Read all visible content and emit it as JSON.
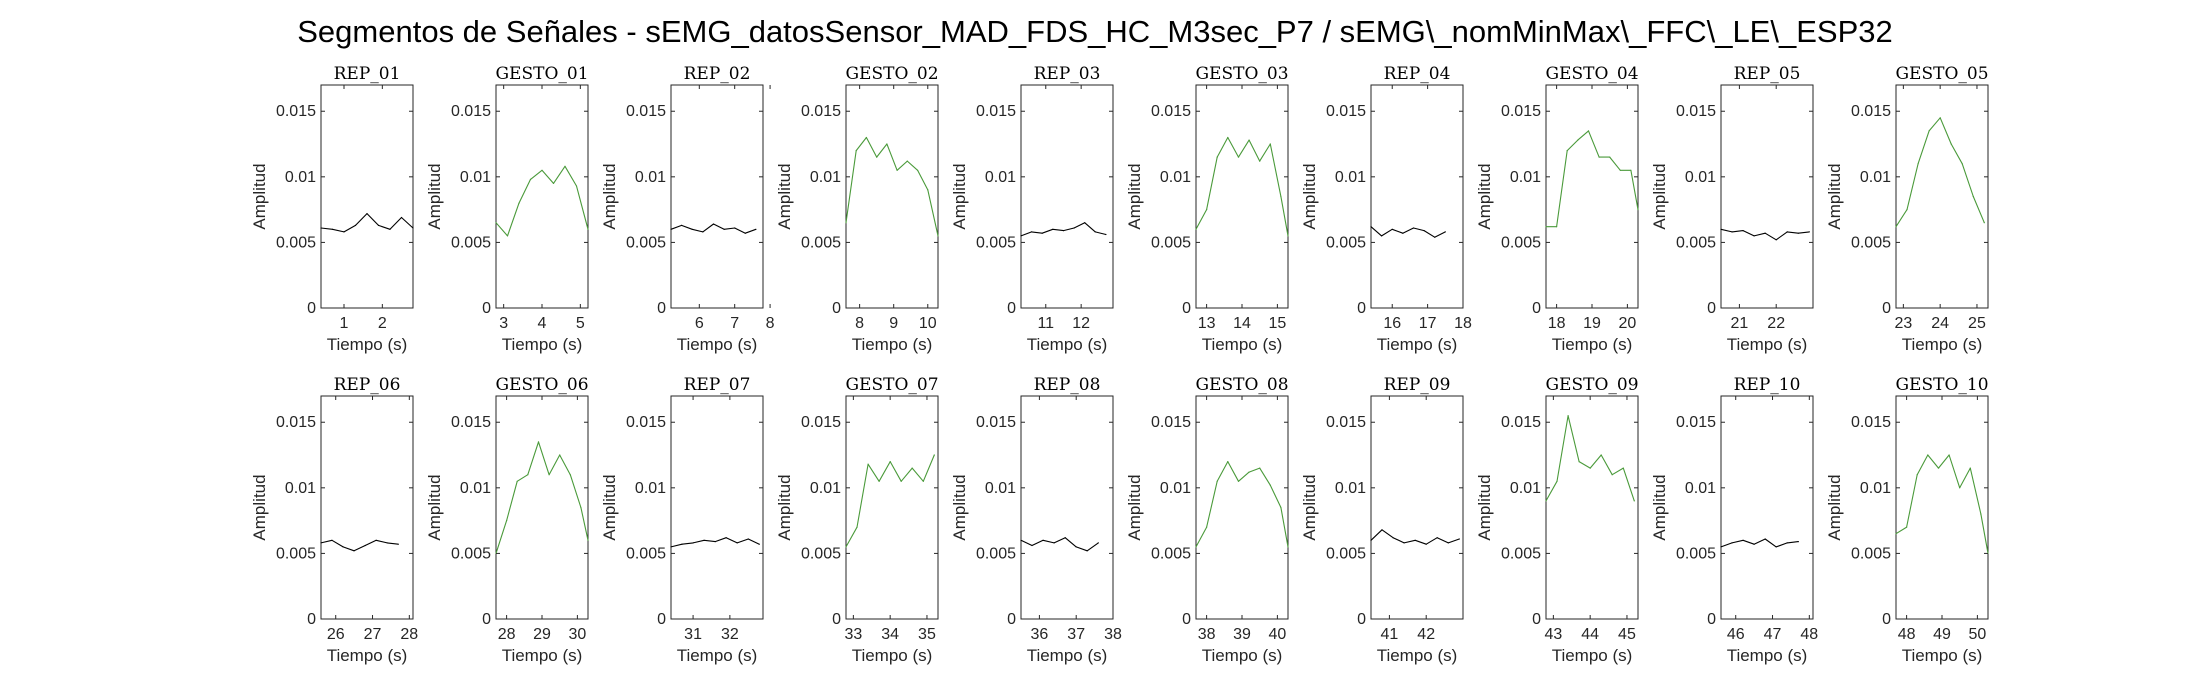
{
  "figure": {
    "title": "Segmentos de Señales - sEMG_datosSensor_MAD_FDS_HC_M3sec_P7 / sEMG\\_nomMinMax\\_FFC\\_LE\\_ESP32",
    "colors": {
      "rep": "#000000",
      "gesto": "#4a9a3a",
      "axis": "#262626"
    }
  },
  "chart_data": [
    {
      "type": "line",
      "title": "REP_01",
      "xlabel": "Tiempo (s)",
      "ylabel": "Amplitud",
      "xlim": [
        0.4,
        2.8
      ],
      "ylim": [
        0,
        0.017
      ],
      "xticks": [
        1,
        2
      ],
      "yticks": [
        0,
        0.005,
        0.01,
        0.015
      ],
      "ytick_labels": [
        "0",
        "0.005",
        "0.01",
        "0.015"
      ],
      "color": "#000000",
      "x": [
        0.4,
        0.7,
        1.0,
        1.3,
        1.6,
        1.9,
        2.2,
        2.5,
        2.8
      ],
      "y": [
        0.0061,
        0.006,
        0.0058,
        0.0063,
        0.0072,
        0.0063,
        0.006,
        0.0069,
        0.0061
      ]
    },
    {
      "type": "line",
      "title": "GESTO_01",
      "xlabel": "Tiempo (s)",
      "ylabel": "Amplitud",
      "xlim": [
        2.8,
        5.2
      ],
      "ylim": [
        0,
        0.017
      ],
      "xticks": [
        3,
        4,
        5
      ],
      "yticks": [
        0,
        0.005,
        0.01,
        0.015
      ],
      "ytick_labels": [
        "0",
        "0.005",
        "0.01",
        "0.015"
      ],
      "color": "#4a9a3a",
      "x": [
        2.8,
        3.1,
        3.4,
        3.7,
        4.0,
        4.3,
        4.6,
        4.9,
        5.2
      ],
      "y": [
        0.0065,
        0.0055,
        0.008,
        0.0098,
        0.0105,
        0.0095,
        0.0108,
        0.0093,
        0.006
      ]
    },
    {
      "type": "line",
      "title": "REP_02",
      "xlabel": "Tiempo (s)",
      "ylabel": "Amplitud",
      "xlim": [
        5.2,
        7.8
      ],
      "ylim": [
        0,
        0.017
      ],
      "xticks": [
        6,
        7,
        8
      ],
      "yticks": [
        0,
        0.005,
        0.01,
        0.015
      ],
      "ytick_labels": [
        "0",
        "0.005",
        "0.01",
        "0.015"
      ],
      "color": "#000000",
      "x": [
        5.2,
        5.5,
        5.8,
        6.1,
        6.4,
        6.7,
        7.0,
        7.3,
        7.6
      ],
      "y": [
        0.006,
        0.0063,
        0.006,
        0.0058,
        0.0064,
        0.006,
        0.0061,
        0.0057,
        0.006
      ]
    },
    {
      "type": "line",
      "title": "GESTO_02",
      "xlabel": "Tiempo (s)",
      "ylabel": "Amplitud",
      "xlim": [
        7.6,
        10.3
      ],
      "ylim": [
        0,
        0.017
      ],
      "xticks": [
        8,
        9,
        10
      ],
      "yticks": [
        0,
        0.005,
        0.01,
        0.015
      ],
      "ytick_labels": [
        "0",
        "0.005",
        "0.01",
        "0.015"
      ],
      "color": "#4a9a3a",
      "x": [
        7.6,
        7.9,
        8.2,
        8.5,
        8.8,
        9.1,
        9.4,
        9.7,
        10.0,
        10.3
      ],
      "y": [
        0.0065,
        0.012,
        0.013,
        0.0115,
        0.0125,
        0.0105,
        0.0112,
        0.0105,
        0.009,
        0.0055
      ]
    },
    {
      "type": "line",
      "title": "REP_03",
      "xlabel": "Tiempo (s)",
      "ylabel": "Amplitud",
      "xlim": [
        10.3,
        12.9
      ],
      "ylim": [
        0,
        0.017
      ],
      "xticks": [
        11,
        12
      ],
      "yticks": [
        0,
        0.005,
        0.01,
        0.015
      ],
      "ytick_labels": [
        "0",
        "0.005",
        "0.01",
        "0.015"
      ],
      "color": "#000000",
      "x": [
        10.3,
        10.6,
        10.9,
        11.2,
        11.5,
        11.8,
        12.1,
        12.4,
        12.7
      ],
      "y": [
        0.0055,
        0.0058,
        0.0057,
        0.006,
        0.0059,
        0.0061,
        0.0065,
        0.0058,
        0.0056
      ]
    },
    {
      "type": "line",
      "title": "GESTO_03",
      "xlabel": "Tiempo (s)",
      "ylabel": "Amplitud",
      "xlim": [
        12.7,
        15.3
      ],
      "ylim": [
        0,
        0.017
      ],
      "xticks": [
        13,
        14,
        15
      ],
      "yticks": [
        0,
        0.005,
        0.01,
        0.015
      ],
      "ytick_labels": [
        "0",
        "0.005",
        "0.01",
        "0.015"
      ],
      "color": "#4a9a3a",
      "x": [
        12.7,
        13.0,
        13.3,
        13.6,
        13.9,
        14.2,
        14.5,
        14.8,
        15.1,
        15.3
      ],
      "y": [
        0.006,
        0.0075,
        0.0115,
        0.013,
        0.0115,
        0.0128,
        0.0112,
        0.0125,
        0.0085,
        0.0055
      ]
    },
    {
      "type": "line",
      "title": "REP_04",
      "xlabel": "Tiempo (s)",
      "ylabel": "Amplitud",
      "xlim": [
        15.4,
        18.0
      ],
      "ylim": [
        0,
        0.017
      ],
      "xticks": [
        16,
        17,
        18
      ],
      "yticks": [
        0,
        0.005,
        0.01,
        0.015
      ],
      "ytick_labels": [
        "0",
        "0.005",
        "0.01",
        "0.015"
      ],
      "color": "#000000",
      "x": [
        15.4,
        15.7,
        16.0,
        16.3,
        16.6,
        16.9,
        17.2,
        17.5
      ],
      "y": [
        0.0062,
        0.0055,
        0.006,
        0.0057,
        0.0061,
        0.0059,
        0.0054,
        0.0058
      ]
    },
    {
      "type": "line",
      "title": "GESTO_04",
      "xlabel": "Tiempo (s)",
      "ylabel": "Amplitud",
      "xlim": [
        17.7,
        20.3
      ],
      "ylim": [
        0,
        0.017
      ],
      "xticks": [
        18,
        19,
        20
      ],
      "yticks": [
        0,
        0.005,
        0.01,
        0.015
      ],
      "ytick_labels": [
        "0",
        "0.005",
        "0.01",
        "0.015"
      ],
      "color": "#4a9a3a",
      "x": [
        17.7,
        18.0,
        18.3,
        18.6,
        18.9,
        19.2,
        19.5,
        19.8,
        20.1,
        20.3
      ],
      "y": [
        0.0062,
        0.0062,
        0.012,
        0.0128,
        0.0135,
        0.0115,
        0.0115,
        0.0105,
        0.0105,
        0.0075
      ]
    },
    {
      "type": "line",
      "title": "REP_05",
      "xlabel": "Tiempo (s)",
      "ylabel": "Amplitud",
      "xlim": [
        20.5,
        23.0
      ],
      "ylim": [
        0,
        0.017
      ],
      "xticks": [
        21,
        22
      ],
      "yticks": [
        0,
        0.005,
        0.01,
        0.015
      ],
      "ytick_labels": [
        "0",
        "0.005",
        "0.01",
        "0.015"
      ],
      "color": "#000000",
      "x": [
        20.5,
        20.8,
        21.1,
        21.4,
        21.7,
        22.0,
        22.3,
        22.6,
        22.9
      ],
      "y": [
        0.006,
        0.0058,
        0.0059,
        0.0055,
        0.0057,
        0.0052,
        0.0058,
        0.0057,
        0.0058
      ]
    },
    {
      "type": "line",
      "title": "GESTO_05",
      "xlabel": "Tiempo (s)",
      "ylabel": "Amplitud",
      "xlim": [
        22.8,
        25.3
      ],
      "ylim": [
        0,
        0.017
      ],
      "xticks": [
        23,
        24,
        25
      ],
      "yticks": [
        0,
        0.005,
        0.01,
        0.015
      ],
      "ytick_labels": [
        "0",
        "0.005",
        "0.01",
        "0.015"
      ],
      "color": "#4a9a3a",
      "x": [
        22.8,
        23.1,
        23.4,
        23.7,
        24.0,
        24.3,
        24.6,
        24.9,
        25.2
      ],
      "y": [
        0.0062,
        0.0075,
        0.011,
        0.0135,
        0.0145,
        0.0125,
        0.011,
        0.0085,
        0.0065
      ]
    },
    {
      "type": "line",
      "title": "REP_06",
      "xlabel": "Tiempo (s)",
      "ylabel": "Amplitud",
      "xlim": [
        25.6,
        28.1
      ],
      "ylim": [
        0,
        0.017
      ],
      "xticks": [
        26,
        27,
        28
      ],
      "yticks": [
        0,
        0.005,
        0.01,
        0.015
      ],
      "ytick_labels": [
        "0",
        "0.005",
        "0.01",
        "0.015"
      ],
      "color": "#000000",
      "x": [
        25.6,
        25.9,
        26.2,
        26.5,
        26.8,
        27.1,
        27.4,
        27.7
      ],
      "y": [
        0.0058,
        0.006,
        0.0055,
        0.0052,
        0.0056,
        0.006,
        0.0058,
        0.0057
      ]
    },
    {
      "type": "line",
      "title": "GESTO_06",
      "xlabel": "Tiempo (s)",
      "ylabel": "Amplitud",
      "xlim": [
        27.7,
        30.3
      ],
      "ylim": [
        0,
        0.017
      ],
      "xticks": [
        28,
        29,
        30
      ],
      "yticks": [
        0,
        0.005,
        0.01,
        0.015
      ],
      "ytick_labels": [
        "0",
        "0.005",
        "0.01",
        "0.015"
      ],
      "color": "#4a9a3a",
      "x": [
        27.7,
        28.0,
        28.3,
        28.6,
        28.9,
        29.2,
        29.5,
        29.8,
        30.1,
        30.3
      ],
      "y": [
        0.005,
        0.0075,
        0.0105,
        0.011,
        0.0135,
        0.011,
        0.0125,
        0.011,
        0.0085,
        0.006
      ]
    },
    {
      "type": "line",
      "title": "REP_07",
      "xlabel": "Tiempo (s)",
      "ylabel": "Amplitud",
      "xlim": [
        30.4,
        32.9
      ],
      "ylim": [
        0,
        0.017
      ],
      "xticks": [
        31,
        32
      ],
      "yticks": [
        0,
        0.005,
        0.01,
        0.015
      ],
      "ytick_labels": [
        "0",
        "0.005",
        "0.01",
        "0.015"
      ],
      "color": "#000000",
      "x": [
        30.4,
        30.7,
        31.0,
        31.3,
        31.6,
        31.9,
        32.2,
        32.5,
        32.8
      ],
      "y": [
        0.0055,
        0.0057,
        0.0058,
        0.006,
        0.0059,
        0.0062,
        0.0058,
        0.0061,
        0.0057
      ]
    },
    {
      "type": "line",
      "title": "GESTO_07",
      "xlabel": "Tiempo (s)",
      "ylabel": "Amplitud",
      "xlim": [
        32.8,
        35.3
      ],
      "ylim": [
        0,
        0.017
      ],
      "xticks": [
        33,
        34,
        35
      ],
      "yticks": [
        0,
        0.005,
        0.01,
        0.015
      ],
      "ytick_labels": [
        "0",
        "0.005",
        "0.01",
        "0.015"
      ],
      "color": "#4a9a3a",
      "x": [
        32.8,
        33.1,
        33.4,
        33.7,
        34.0,
        34.3,
        34.6,
        34.9,
        35.2
      ],
      "y": [
        0.0055,
        0.007,
        0.0118,
        0.0105,
        0.012,
        0.0105,
        0.0115,
        0.0105,
        0.0125
      ]
    },
    {
      "type": "line",
      "title": "REP_08",
      "xlabel": "Tiempo (s)",
      "ylabel": "Amplitud",
      "xlim": [
        35.5,
        38.0
      ],
      "ylim": [
        0,
        0.017
      ],
      "xticks": [
        36,
        37,
        38
      ],
      "yticks": [
        0,
        0.005,
        0.01,
        0.015
      ],
      "ytick_labels": [
        "0",
        "0.005",
        "0.01",
        "0.015"
      ],
      "color": "#000000",
      "x": [
        35.5,
        35.8,
        36.1,
        36.4,
        36.7,
        37.0,
        37.3,
        37.6
      ],
      "y": [
        0.006,
        0.0056,
        0.006,
        0.0058,
        0.0062,
        0.0055,
        0.0052,
        0.0058
      ]
    },
    {
      "type": "line",
      "title": "GESTO_08",
      "xlabel": "Tiempo (s)",
      "ylabel": "Amplitud",
      "xlim": [
        37.7,
        40.3
      ],
      "ylim": [
        0,
        0.017
      ],
      "xticks": [
        38,
        39,
        40
      ],
      "yticks": [
        0,
        0.005,
        0.01,
        0.015
      ],
      "ytick_labels": [
        "0",
        "0.005",
        "0.01",
        "0.015"
      ],
      "color": "#4a9a3a",
      "x": [
        37.7,
        38.0,
        38.3,
        38.6,
        38.9,
        39.2,
        39.5,
        39.8,
        40.1,
        40.3
      ],
      "y": [
        0.0055,
        0.007,
        0.0105,
        0.012,
        0.0105,
        0.0112,
        0.0115,
        0.0102,
        0.0085,
        0.0055
      ]
    },
    {
      "type": "line",
      "title": "REP_09",
      "xlabel": "Tiempo (s)",
      "ylabel": "Amplitud",
      "xlim": [
        40.5,
        43.0
      ],
      "ylim": [
        0,
        0.017
      ],
      "xticks": [
        41,
        42
      ],
      "yticks": [
        0,
        0.005,
        0.01,
        0.015
      ],
      "ytick_labels": [
        "0",
        "0.005",
        "0.01",
        "0.015"
      ],
      "color": "#000000",
      "x": [
        40.5,
        40.8,
        41.1,
        41.4,
        41.7,
        42.0,
        42.3,
        42.6,
        42.9
      ],
      "y": [
        0.006,
        0.0068,
        0.0062,
        0.0058,
        0.006,
        0.0057,
        0.0062,
        0.0058,
        0.0061
      ]
    },
    {
      "type": "line",
      "title": "GESTO_09",
      "xlabel": "Tiempo (s)",
      "ylabel": "Amplitud",
      "xlim": [
        42.8,
        45.3
      ],
      "ylim": [
        0,
        0.017
      ],
      "xticks": [
        43,
        44,
        45
      ],
      "yticks": [
        0,
        0.005,
        0.01,
        0.015
      ],
      "ytick_labels": [
        "0",
        "0.005",
        "0.01",
        "0.015"
      ],
      "color": "#4a9a3a",
      "x": [
        42.8,
        43.1,
        43.4,
        43.7,
        44.0,
        44.3,
        44.6,
        44.9,
        45.2
      ],
      "y": [
        0.009,
        0.0105,
        0.0155,
        0.012,
        0.0115,
        0.0125,
        0.011,
        0.0115,
        0.009
      ]
    },
    {
      "type": "line",
      "title": "REP_10",
      "xlabel": "Tiempo (s)",
      "ylabel": "Amplitud",
      "xlim": [
        45.6,
        48.1
      ],
      "ylim": [
        0,
        0.017
      ],
      "xticks": [
        46,
        47,
        48
      ],
      "yticks": [
        0,
        0.005,
        0.01,
        0.015
      ],
      "ytick_labels": [
        "0",
        "0.005",
        "0.01",
        "0.015"
      ],
      "color": "#000000",
      "x": [
        45.6,
        45.9,
        46.2,
        46.5,
        46.8,
        47.1,
        47.4,
        47.7
      ],
      "y": [
        0.0055,
        0.0058,
        0.006,
        0.0057,
        0.0061,
        0.0055,
        0.0058,
        0.0059
      ]
    },
    {
      "type": "line",
      "title": "GESTO_10",
      "xlabel": "Tiempo (s)",
      "ylabel": "Amplitud",
      "xlim": [
        47.7,
        50.3
      ],
      "ylim": [
        0,
        0.017
      ],
      "xticks": [
        48,
        49,
        50
      ],
      "yticks": [
        0,
        0.005,
        0.01,
        0.015
      ],
      "ytick_labels": [
        "0",
        "0.005",
        "0.01",
        "0.015"
      ],
      "color": "#4a9a3a",
      "x": [
        47.7,
        48.0,
        48.3,
        48.6,
        48.9,
        49.2,
        49.5,
        49.8,
        50.1,
        50.3
      ],
      "y": [
        0.0065,
        0.007,
        0.011,
        0.0125,
        0.0115,
        0.0125,
        0.01,
        0.0115,
        0.008,
        0.005
      ]
    }
  ]
}
